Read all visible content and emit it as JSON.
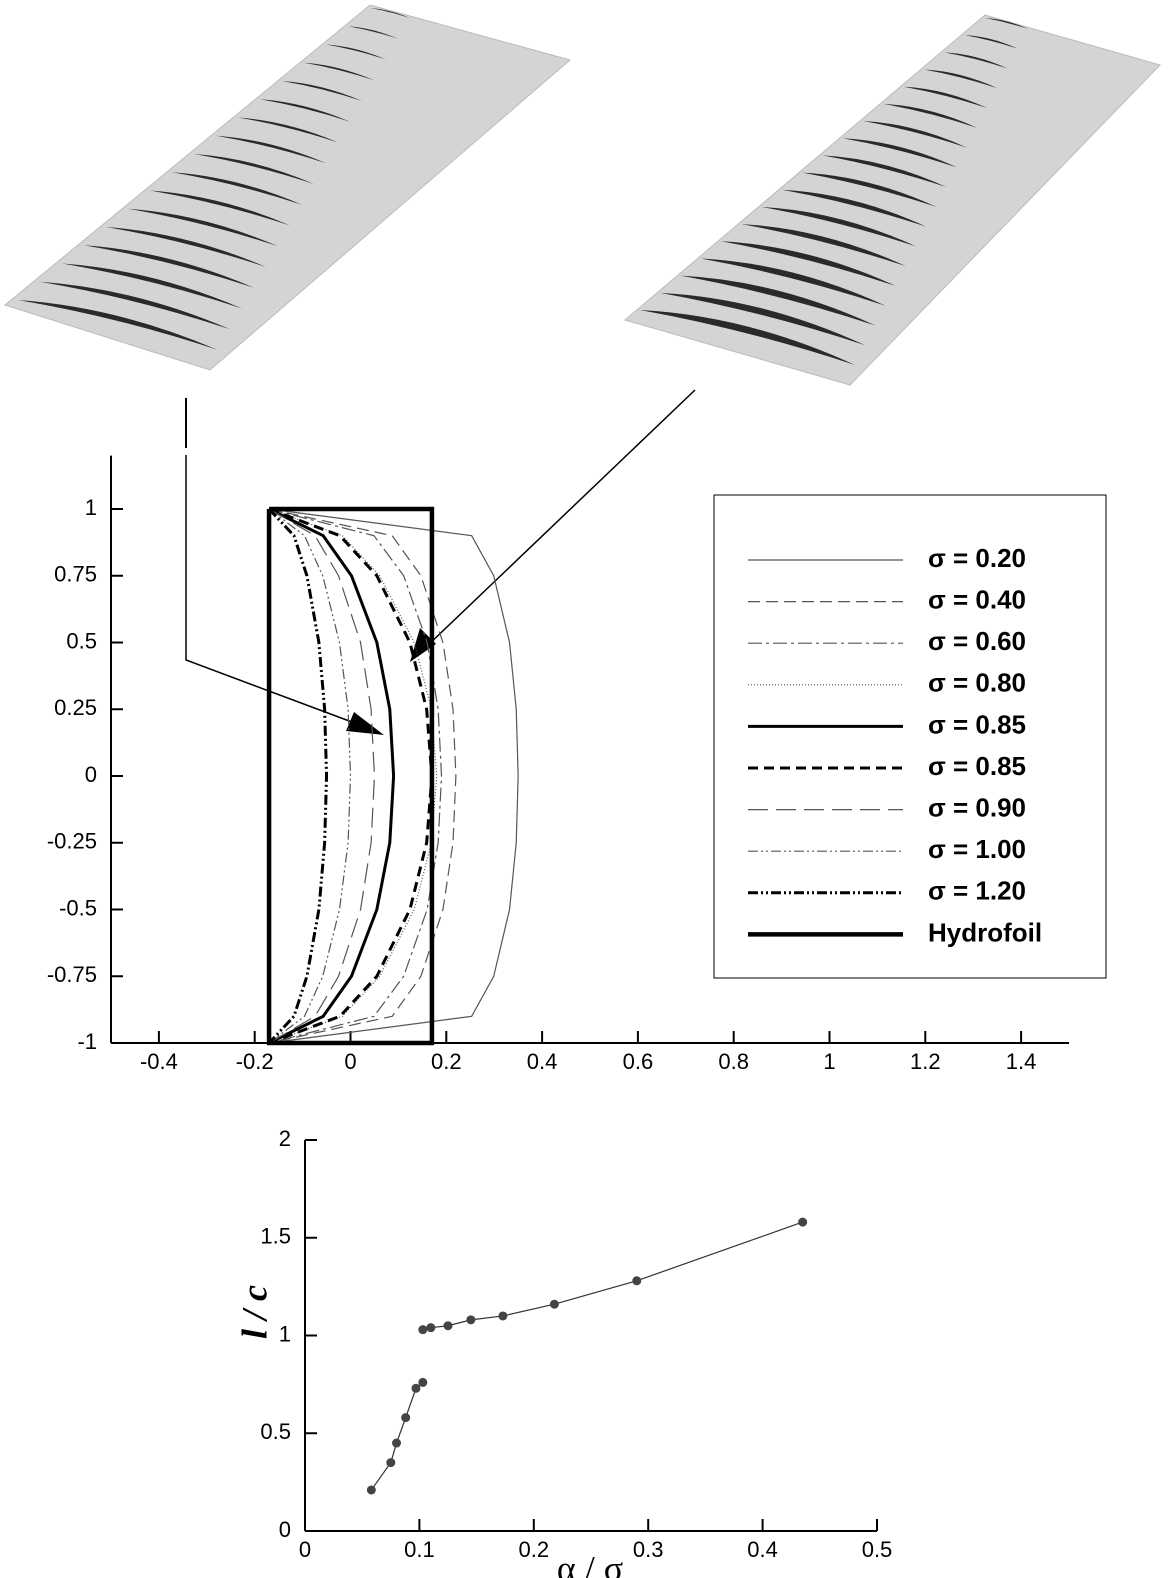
{
  "chart_data": [
    {
      "type": "line",
      "xlim": [
        -0.5,
        1.5
      ],
      "ylim": [
        -1,
        1.2
      ],
      "xticks": [
        -0.4,
        -0.2,
        0,
        0.2,
        0.4,
        0.6,
        0.8,
        1,
        1.2,
        1.4
      ],
      "yticks": [
        -1,
        -0.75,
        -0.5,
        -0.25,
        0,
        0.25,
        0.5,
        0.75,
        1
      ],
      "legend": "upper right",
      "series": [
        {
          "name": "σ = 0.20",
          "color": "#555555",
          "width": 1.2,
          "dash": "none",
          "x": [
            -0.17,
            0.253,
            0.299,
            0.332,
            0.346,
            0.35,
            0.346,
            0.332,
            0.299,
            0.253,
            -0.17
          ],
          "values": [
            1,
            0.9,
            0.75,
            0.5,
            0.25,
            0,
            -0.25,
            -0.5,
            -0.75,
            -0.9,
            -1
          ]
        },
        {
          "name": "σ = 0.40",
          "color": "#555555",
          "width": 1.2,
          "dash": "12 6",
          "x": [
            -0.17,
            0.087,
            0.147,
            0.193,
            0.214,
            0.22,
            0.214,
            0.193,
            0.147,
            0.087,
            -0.17
          ],
          "values": [
            1,
            0.9,
            0.75,
            0.5,
            0.25,
            0,
            -0.25,
            -0.5,
            -0.75,
            -0.9,
            -1
          ]
        },
        {
          "name": "σ = 0.60",
          "color": "#555555",
          "width": 1.2,
          "dash": "14 4 3 4",
          "x": [
            -0.17,
            0.049,
            0.111,
            0.16,
            0.183,
            0.19,
            0.183,
            0.16,
            0.111,
            0.049,
            -0.17
          ],
          "values": [
            1,
            0.9,
            0.75,
            0.5,
            0.25,
            0,
            -0.25,
            -0.5,
            -0.75,
            -0.9,
            -1
          ]
        },
        {
          "name": "σ = 0.80",
          "color": "#555555",
          "width": 1.2,
          "dash": "1 2",
          "x": [
            -0.17,
            -0.017,
            0.061,
            0.133,
            0.169,
            0.18,
            0.169,
            0.133,
            0.061,
            -0.017,
            -0.17
          ],
          "values": [
            1,
            0.9,
            0.75,
            0.5,
            0.25,
            0,
            -0.25,
            -0.5,
            -0.75,
            -0.9,
            -1
          ]
        },
        {
          "name": "σ = 0.85",
          "color": "#000000",
          "width": 3,
          "dash": "none",
          "x": [
            -0.17,
            -0.057,
            0.002,
            0.055,
            0.082,
            0.09,
            0.082,
            0.055,
            0.002,
            -0.057,
            -0.17
          ],
          "values": [
            1,
            0.9,
            0.75,
            0.5,
            0.25,
            0,
            -0.25,
            -0.5,
            -0.75,
            -0.9,
            -1
          ]
        },
        {
          "name": "σ = 0.85",
          "color": "#000000",
          "width": 3,
          "dash": "10 6",
          "x": [
            -0.17,
            -0.022,
            0.055,
            0.124,
            0.159,
            0.17,
            0.159,
            0.124,
            0.055,
            -0.022,
            -0.17
          ],
          "values": [
            1,
            0.9,
            0.75,
            0.5,
            0.25,
            0,
            -0.25,
            -0.5,
            -0.75,
            -0.9,
            -1
          ]
        },
        {
          "name": "σ = 0.90",
          "color": "#555555",
          "width": 1.2,
          "dash": "20 8",
          "x": [
            -0.17,
            -0.074,
            -0.025,
            0.021,
            0.043,
            0.05,
            0.043,
            0.021,
            -0.025,
            -0.074,
            -0.17
          ],
          "values": [
            1,
            0.9,
            0.75,
            0.5,
            0.25,
            0,
            -0.25,
            -0.5,
            -0.75,
            -0.9,
            -1
          ]
        },
        {
          "name": "σ = 1.00",
          "color": "#555555",
          "width": 1.2,
          "dash": "10 3 2 3 2 3",
          "x": [
            -0.17,
            -0.096,
            -0.058,
            -0.023,
            -0.005,
            0,
            -0.005,
            -0.023,
            -0.058,
            -0.096,
            -0.17
          ],
          "values": [
            1,
            0.9,
            0.75,
            0.5,
            0.25,
            0,
            -0.25,
            -0.5,
            -0.75,
            -0.9,
            -1
          ]
        },
        {
          "name": "σ = 1.20",
          "color": "#000000",
          "width": 3,
          "dash": "10 3 2 3 2 3",
          "x": [
            -0.17,
            -0.118,
            -0.091,
            -0.066,
            -0.054,
            -0.05,
            -0.054,
            -0.066,
            -0.091,
            -0.118,
            -0.17
          ],
          "values": [
            1,
            0.9,
            0.75,
            0.5,
            0.25,
            0,
            -0.25,
            -0.5,
            -0.75,
            -0.9,
            -1
          ]
        },
        {
          "name": "Hydrofoil",
          "color": "#000000",
          "width": 4.5,
          "dash": "none",
          "x": [
            -0.17,
            0.17,
            0.17,
            -0.17,
            -0.17
          ],
          "values": [
            1,
            1,
            -1,
            -1,
            1
          ]
        }
      ]
    },
    {
      "type": "line",
      "markers": true,
      "xlabel": "α / σ",
      "ylabel": "l / c",
      "xlim": [
        0,
        0.5
      ],
      "ylim": [
        0,
        2
      ],
      "xticks": [
        0,
        0.1,
        0.2,
        0.3,
        0.4,
        0.5
      ],
      "yticks": [
        0,
        0.5,
        1,
        1.5,
        2
      ],
      "series": [
        {
          "color": "#333333",
          "x": [
            0.058,
            0.075,
            0.08,
            0.088,
            0.097,
            0.103,
            null,
            0.103,
            0.11,
            0.125,
            0.145,
            0.173,
            0.218,
            0.29,
            0.435
          ],
          "values": [
            0.21,
            0.35,
            0.45,
            0.58,
            0.73,
            0.76,
            null,
            1.03,
            1.04,
            1.05,
            1.08,
            1.1,
            1.16,
            1.28,
            1.58
          ]
        }
      ]
    }
  ]
}
